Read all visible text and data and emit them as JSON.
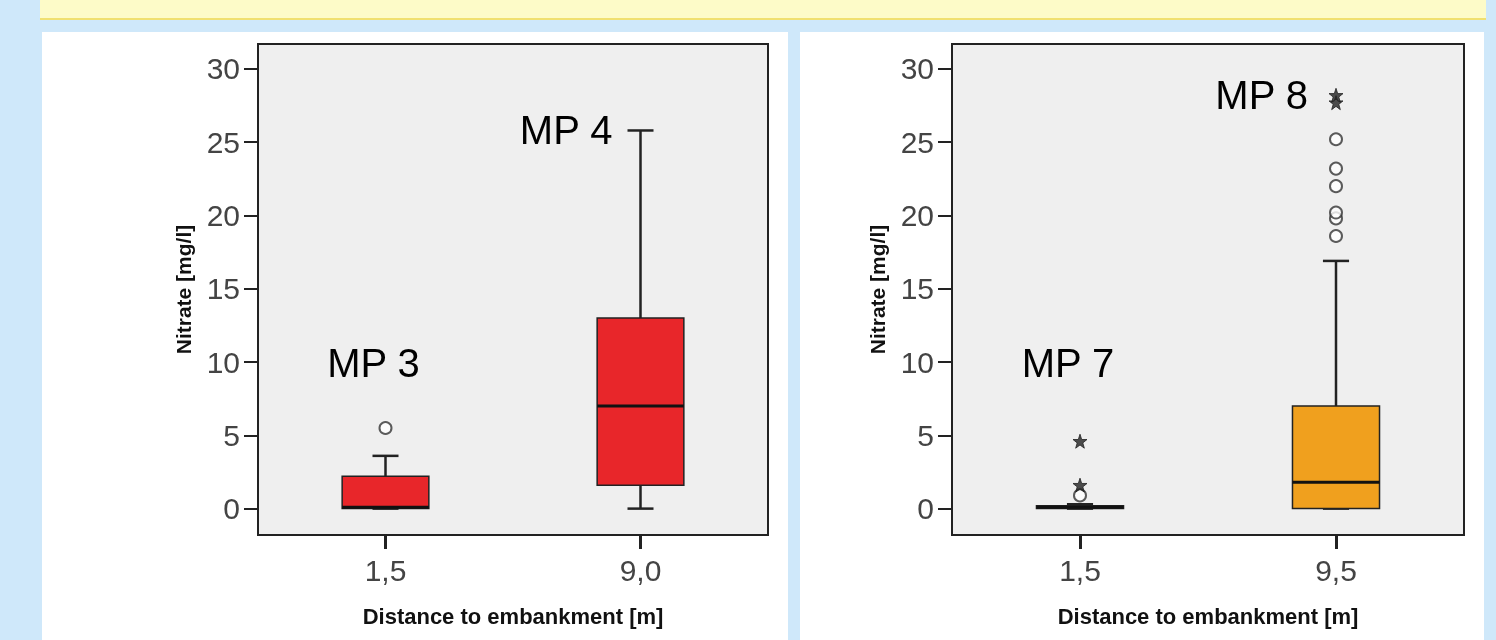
{
  "chart_data": [
    {
      "type": "box",
      "xlabel": "Distance to embankment [m]",
      "ylabel": "Nitrate [mg/l]",
      "categories": [
        "1,5",
        "9,0"
      ],
      "ylim": [
        -1.8,
        31.7
      ],
      "yticks": [
        0,
        5,
        10,
        15,
        20,
        25,
        30
      ],
      "grid": false,
      "series": [
        {
          "color": "#e8262a",
          "boxes": [
            {
              "low": 0,
              "q1": 0,
              "median": 0.1,
              "q3": 2.2,
              "high": 3.6,
              "outliers": [
                5.5
              ]
            },
            {
              "low": 0,
              "q1": 1.6,
              "median": 7,
              "q3": 13,
              "high": 25.8
            }
          ]
        }
      ],
      "annotations": [
        "MP 3",
        "MP 4"
      ]
    },
    {
      "type": "box",
      "xlabel": "Distance to embankment [m]",
      "ylabel": "Nitrate [mg/l]",
      "categories": [
        "1,5",
        "9,5"
      ],
      "ylim": [
        -1.8,
        31.7
      ],
      "yticks": [
        0,
        5,
        10,
        15,
        20,
        25,
        30
      ],
      "grid": false,
      "series": [
        {
          "color": "#f0a01e",
          "boxes": [
            {
              "low": 0,
              "q1": 0,
              "median": 0.1,
              "q3": 0.2,
              "high": 0.3,
              "outliers": [
                0.9
              ]
            },
            {
              "low": 0,
              "q1": 0,
              "median": 1.8,
              "q3": 7,
              "high": 16.9,
              "outliers": [
                18.6,
                19.8,
                20.2,
                22,
                23.2,
                25.2
              ]
            }
          ]
        },
        {
          "type": "scatter",
          "marker": "star",
          "color": "#222222",
          "x": [
            "1,5",
            "1,5",
            "9,5",
            "9,5"
          ],
          "values": [
            1.6,
            4.6,
            27.7,
            28.2
          ]
        }
      ],
      "annotations": [
        "MP 7",
        "MP 8"
      ]
    }
  ]
}
